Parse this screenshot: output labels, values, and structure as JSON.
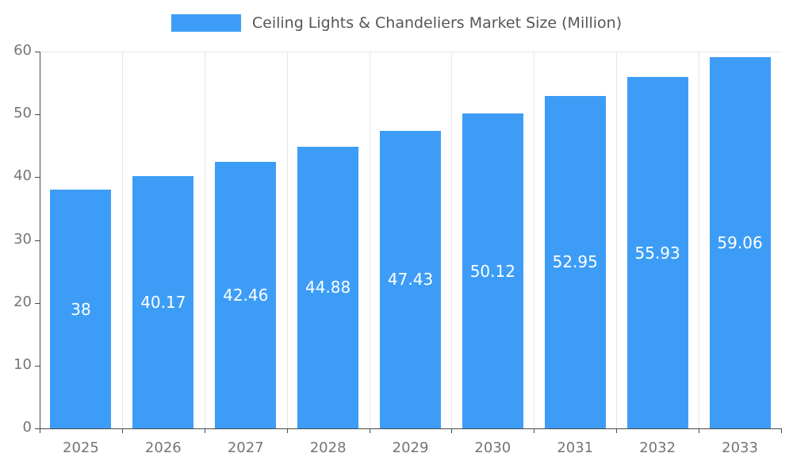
{
  "chart_data": {
    "type": "bar",
    "title": "Ceiling Lights & Chandeliers Market Size (Million)",
    "categories": [
      "2025",
      "2026",
      "2027",
      "2028",
      "2029",
      "2030",
      "2031",
      "2032",
      "2033"
    ],
    "values": [
      38,
      40.17,
      42.46,
      44.88,
      47.43,
      50.12,
      52.95,
      55.93,
      59.06
    ],
    "value_labels": [
      "38",
      "40.17",
      "42.46",
      "44.88",
      "47.43",
      "50.12",
      "52.95",
      "55.93",
      "59.06"
    ],
    "xlabel": "",
    "ylabel": "",
    "ylim": [
      0,
      60
    ],
    "yticks": [
      0,
      10,
      20,
      30,
      40,
      50,
      60
    ],
    "grid": "vertical-splitlines-plus-top-border",
    "legend_position": "top-center",
    "colors": {
      "bar": "#3d9df6",
      "bar_value_label": "#ffffff",
      "axis": "#4a4a4a",
      "tick_label": "#757575",
      "gridline": "#e2e6ec",
      "title": "#565656"
    }
  }
}
